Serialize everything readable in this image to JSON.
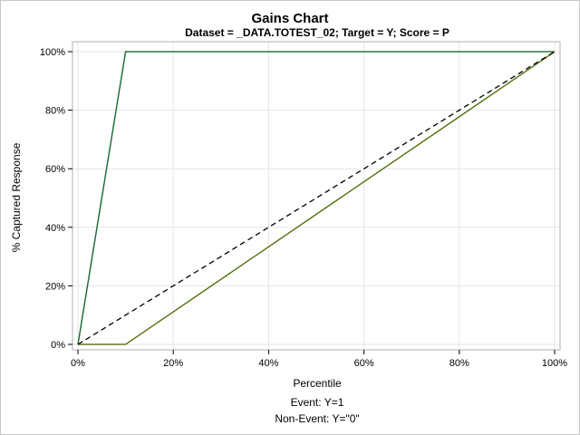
{
  "chart_data": {
    "type": "line",
    "title": "Gains Chart",
    "subtitle": "Dataset = _DATA.TOTEST_02; Target = Y; Score = P",
    "xlabel": "Percentile",
    "ylabel": "% Captured Response",
    "xlim": [
      0,
      100
    ],
    "ylim": [
      0,
      100
    ],
    "x_ticks": [
      "0%",
      "20%",
      "40%",
      "60%",
      "80%",
      "100%"
    ],
    "y_ticks": [
      "0%",
      "20%",
      "40%",
      "60%",
      "80%",
      "100%"
    ],
    "grid": true,
    "series": [
      {
        "key": "event_best",
        "color": "#3a8a8a",
        "dash": "",
        "points": [
          [
            0,
            0
          ],
          [
            10,
            100
          ],
          [
            100,
            100
          ]
        ]
      },
      {
        "key": "event_model",
        "color": "#1e6a30",
        "dash": "",
        "points": [
          [
            0,
            0
          ],
          [
            10,
            100
          ],
          [
            100,
            100
          ]
        ]
      },
      {
        "key": "nonevent_best",
        "color": "#c8553a",
        "dash": "",
        "points": [
          [
            0,
            0
          ],
          [
            10,
            0
          ],
          [
            100,
            100
          ]
        ]
      },
      {
        "key": "nonevent_model",
        "color": "#4a7a10",
        "dash": "",
        "points": [
          [
            0,
            0
          ],
          [
            10,
            0
          ],
          [
            100,
            100
          ]
        ]
      },
      {
        "key": "baseline",
        "color": "#000000",
        "dash": "6,4",
        "points": [
          [
            0,
            0
          ],
          [
            100,
            100
          ]
        ]
      }
    ],
    "footnotes": [
      "Event: Y=1",
      "Non-Event: Y=\"0\""
    ]
  }
}
